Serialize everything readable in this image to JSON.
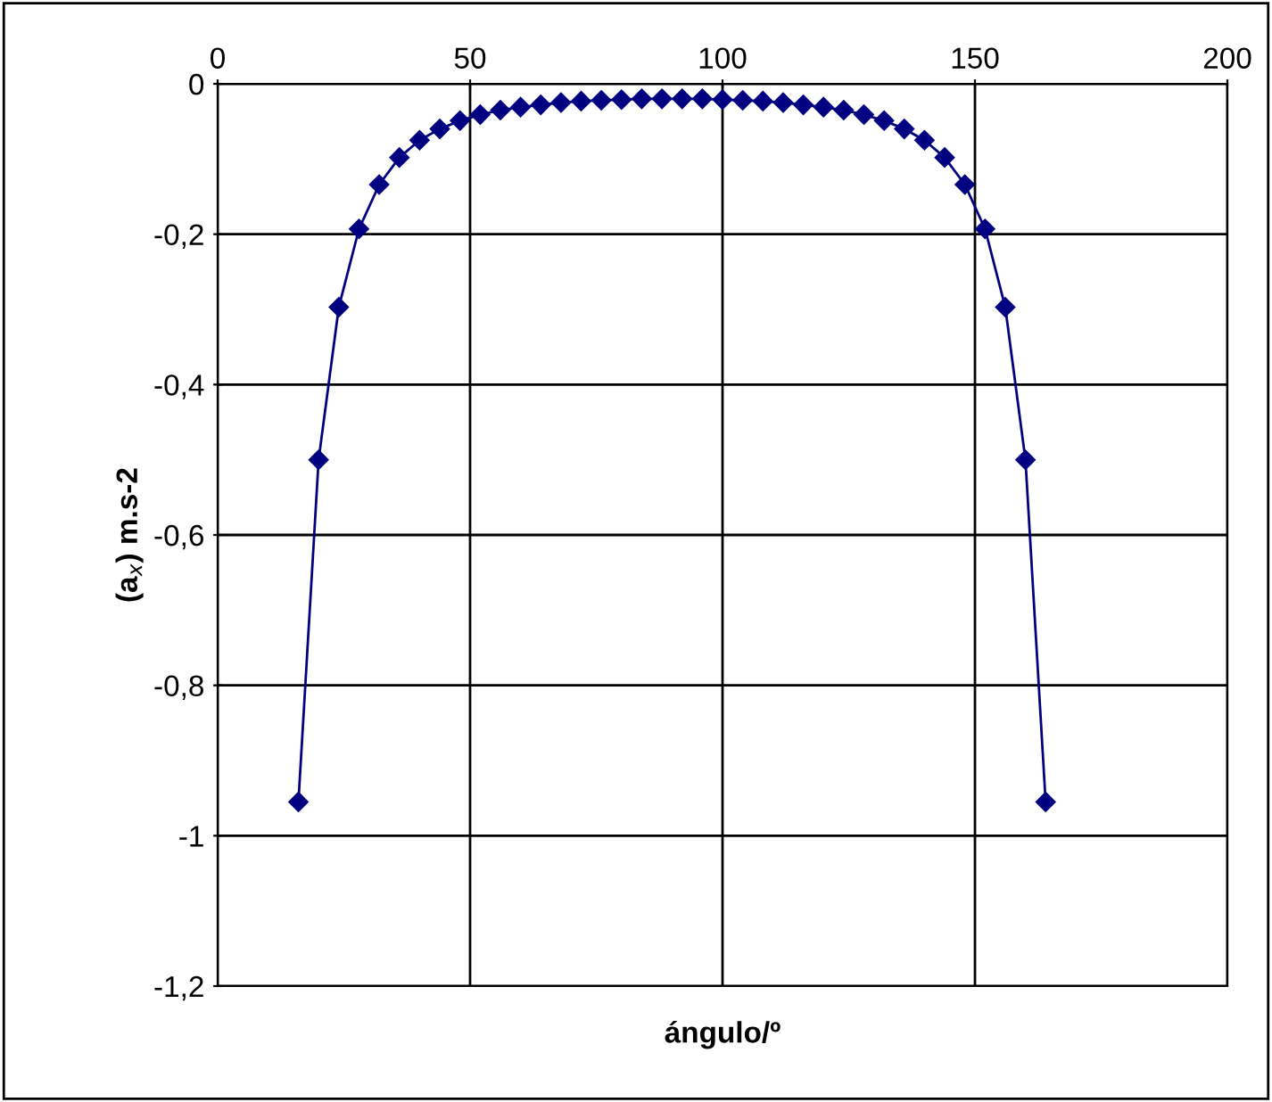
{
  "chart_data": {
    "type": "line",
    "xlabel": "ángulo/º",
    "ylabel": "(a$_{x}$) m.s-2",
    "x": [
      16,
      20,
      24,
      28,
      32,
      36,
      40,
      44,
      48,
      52,
      56,
      60,
      64,
      68,
      72,
      76,
      80,
      84,
      88,
      92,
      96,
      100,
      104,
      108,
      112,
      116,
      120,
      124,
      128,
      132,
      136,
      140,
      144,
      148,
      152,
      156,
      160,
      164
    ],
    "series": [
      {
        "color": "#000080",
        "values": [
          -0.955,
          -0.5,
          -0.297,
          -0.193,
          -0.134,
          -0.098,
          -0.075,
          -0.06,
          -0.049,
          -0.041,
          -0.035,
          -0.031,
          -0.028,
          -0.025,
          -0.023,
          -0.022,
          -0.021,
          -0.02,
          -0.02,
          -0.02,
          -0.02,
          -0.021,
          -0.022,
          -0.023,
          -0.025,
          -0.028,
          -0.031,
          -0.035,
          -0.041,
          -0.049,
          -0.06,
          -0.075,
          -0.098,
          -0.134,
          -0.193,
          -0.297,
          -0.5,
          -0.955
        ]
      }
    ],
    "xlim": [
      0,
      200
    ],
    "ylim": [
      -1.2,
      0
    ],
    "xticks": [
      0,
      50,
      100,
      150,
      200
    ],
    "yticks": [
      {
        "value": -1.2,
        "label": "-1,2"
      },
      {
        "value": -1,
        "label": "-1"
      },
      {
        "value": -0.8,
        "label": "-0,8"
      },
      {
        "value": -0.6,
        "label": "-0,6"
      },
      {
        "value": -0.4,
        "label": "-0,4"
      },
      {
        "value": -0.2,
        "label": "-0,2"
      },
      0
    ],
    "grid": true,
    "marker": "diamond",
    "line_style": "solid",
    "legend": false
  }
}
